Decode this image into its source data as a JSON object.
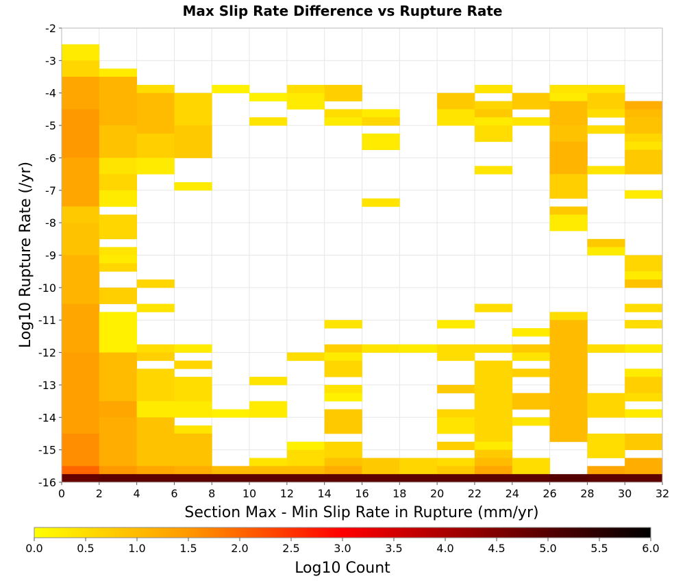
{
  "chart_data": {
    "type": "heatmap",
    "title": "Max Slip Rate Difference vs Rupture Rate",
    "xlabel": "Section Max - Min Slip Rate in Rupture (mm/yr)",
    "ylabel": "Log10 Rupture Rate (/yr)",
    "xlim": [
      0,
      32
    ],
    "ylim": [
      -16,
      -2
    ],
    "x_bin_width": 2,
    "y_bin_width": 0.25,
    "x_ticks": [
      "0",
      "2",
      "4",
      "6",
      "8",
      "10",
      "12",
      "14",
      "16",
      "18",
      "20",
      "22",
      "24",
      "26",
      "28",
      "30",
      "32"
    ],
    "y_ticks": [
      "-2",
      "-3",
      "-4",
      "-5",
      "-6",
      "-7",
      "-8",
      "-9",
      "-10",
      "-11",
      "-12",
      "-13",
      "-14",
      "-15",
      "-16"
    ],
    "grid": true,
    "colorbar": {
      "label": "Log10 Count",
      "range": [
        0,
        6
      ],
      "ticks": [
        "0.0",
        "0.5",
        "1.0",
        "1.5",
        "2.0",
        "2.5",
        "3.0",
        "3.5",
        "4.0",
        "4.5",
        "5.0",
        "5.5",
        "6.0"
      ],
      "colors": [
        "#ffff00",
        "#ff9900",
        "#ff0000",
        "#000000"
      ]
    },
    "value_unit": "log10 count",
    "columns": [
      {
        "x_range": [
          0,
          2
        ],
        "segments": [
          [
            -3.0,
            -2.5,
            0.3
          ],
          [
            -3.5,
            -3.0,
            0.6
          ],
          [
            -4.5,
            -3.5,
            1.3
          ],
          [
            -6.0,
            -4.5,
            1.5
          ],
          [
            -7.5,
            -6.0,
            1.3
          ],
          [
            -8.0,
            -7.5,
            0.8
          ],
          [
            -9.0,
            -8.0,
            0.9
          ],
          [
            -10.5,
            -9.0,
            1.1
          ],
          [
            -12.0,
            -10.5,
            1.3
          ],
          [
            -14.5,
            -12.0,
            1.4
          ],
          [
            -15.5,
            -14.5,
            1.6
          ],
          [
            -15.75,
            -15.5,
            2.0
          ],
          [
            -16.0,
            -15.75,
            4.8
          ]
        ]
      },
      {
        "x_range": [
          2,
          4
        ],
        "segments": [
          [
            -3.5,
            -3.25,
            0.3
          ],
          [
            -5.0,
            -3.5,
            1.1
          ],
          [
            -6.0,
            -5.0,
            0.9
          ],
          [
            -6.5,
            -6.0,
            0.4
          ],
          [
            -7.0,
            -6.5,
            0.6
          ],
          [
            -7.5,
            -7.0,
            0.3
          ],
          [
            -8.0,
            -7.75,
            0.6
          ],
          [
            -8.5,
            -8.0,
            0.6
          ],
          [
            -9.0,
            -8.75,
            0.4
          ],
          [
            -9.25,
            -9.0,
            0.3
          ],
          [
            -9.5,
            -9.25,
            0.6
          ],
          [
            -10.5,
            -10.0,
            0.7
          ],
          [
            -12.0,
            -10.75,
            0.2
          ],
          [
            -13.5,
            -12.0,
            1.0
          ],
          [
            -14.0,
            -13.5,
            1.3
          ],
          [
            -15.5,
            -14.0,
            1.2
          ],
          [
            -15.75,
            -15.5,
            1.5
          ],
          [
            -16.0,
            -15.75,
            4.9
          ]
        ]
      },
      {
        "x_range": [
          4,
          6
        ],
        "segments": [
          [
            -4.0,
            -3.75,
            0.5
          ],
          [
            -5.25,
            -4.0,
            1.0
          ],
          [
            -6.0,
            -5.25,
            0.7
          ],
          [
            -6.5,
            -6.0,
            0.3
          ],
          [
            -10.0,
            -9.75,
            0.6
          ],
          [
            -10.75,
            -10.5,
            0.4
          ],
          [
            -12.0,
            -11.75,
            0.5
          ],
          [
            -12.25,
            -12.0,
            0.7
          ],
          [
            -13.5,
            -12.5,
            0.6
          ],
          [
            -14.0,
            -13.5,
            0.3
          ],
          [
            -15.5,
            -14.0,
            0.9
          ],
          [
            -15.75,
            -15.5,
            1.3
          ],
          [
            -16.0,
            -15.75,
            4.9
          ]
        ]
      },
      {
        "x_range": [
          6,
          8
        ],
        "segments": [
          [
            -5.0,
            -4.0,
            0.6
          ],
          [
            -6.0,
            -5.0,
            0.8
          ],
          [
            -7.0,
            -6.75,
            0.3
          ],
          [
            -12.0,
            -11.75,
            0.3
          ],
          [
            -12.5,
            -12.25,
            0.6
          ],
          [
            -13.5,
            -12.75,
            0.5
          ],
          [
            -14.0,
            -13.5,
            0.3
          ],
          [
            -14.5,
            -14.25,
            0.4
          ],
          [
            -15.5,
            -14.5,
            0.9
          ],
          [
            -15.75,
            -15.5,
            1.2
          ],
          [
            -16.0,
            -15.75,
            4.9
          ]
        ]
      },
      {
        "x_range": [
          8,
          10
        ],
        "segments": [
          [
            -4.0,
            -3.75,
            0.2
          ],
          [
            -14.0,
            -13.75,
            0.2
          ],
          [
            -15.75,
            -15.5,
            1.0
          ],
          [
            -16.0,
            -15.75,
            4.9
          ]
        ]
      },
      {
        "x_range": [
          10,
          12
        ],
        "segments": [
          [
            -4.25,
            -4.0,
            0.2
          ],
          [
            -5.0,
            -4.75,
            0.4
          ],
          [
            -13.0,
            -12.75,
            0.4
          ],
          [
            -14.0,
            -13.5,
            0.3
          ],
          [
            -15.5,
            -15.25,
            0.4
          ],
          [
            -15.75,
            -15.5,
            1.0
          ],
          [
            -16.0,
            -15.75,
            4.9
          ]
        ]
      },
      {
        "x_range": [
          12,
          14
        ],
        "segments": [
          [
            -4.0,
            -3.75,
            0.5
          ],
          [
            -4.5,
            -4.0,
            0.3
          ],
          [
            -12.25,
            -12.0,
            0.5
          ],
          [
            -15.0,
            -14.75,
            0.2
          ],
          [
            -15.5,
            -15.0,
            0.5
          ],
          [
            -15.75,
            -15.5,
            1.0
          ],
          [
            -16.0,
            -15.75,
            4.9
          ]
        ]
      },
      {
        "x_range": [
          14,
          16
        ],
        "segments": [
          [
            -4.25,
            -3.75,
            0.7
          ],
          [
            -4.75,
            -4.5,
            0.5
          ],
          [
            -5.0,
            -4.75,
            0.3
          ],
          [
            -11.25,
            -11.0,
            0.4
          ],
          [
            -12.0,
            -11.75,
            0.7
          ],
          [
            -12.25,
            -12.0,
            0.3
          ],
          [
            -12.75,
            -12.25,
            0.6
          ],
          [
            -13.25,
            -13.0,
            0.4
          ],
          [
            -13.5,
            -13.25,
            0.2
          ],
          [
            -14.5,
            -13.75,
            0.8
          ],
          [
            -15.25,
            -14.75,
            0.6
          ],
          [
            -15.5,
            -15.25,
            0.9
          ],
          [
            -15.75,
            -15.5,
            1.2
          ],
          [
            -16.0,
            -15.75,
            4.9
          ]
        ]
      },
      {
        "x_range": [
          16,
          18
        ],
        "segments": [
          [
            -4.75,
            -4.5,
            0.3
          ],
          [
            -5.0,
            -4.75,
            0.6
          ],
          [
            -5.75,
            -5.25,
            0.3
          ],
          [
            -7.5,
            -7.25,
            0.4
          ],
          [
            -12.0,
            -11.75,
            0.4
          ],
          [
            -15.75,
            -15.25,
            0.8
          ],
          [
            -16.0,
            -15.75,
            4.9
          ]
        ]
      },
      {
        "x_range": [
          18,
          20
        ],
        "segments": [
          [
            -12.0,
            -11.75,
            0.3
          ],
          [
            -15.75,
            -15.25,
            0.6
          ],
          [
            -16.0,
            -15.75,
            4.9
          ]
        ]
      },
      {
        "x_range": [
          20,
          22
        ],
        "segments": [
          [
            -4.5,
            -4.0,
            0.8
          ],
          [
            -5.0,
            -4.5,
            0.4
          ],
          [
            -11.25,
            -11.0,
            0.3
          ],
          [
            -12.25,
            -11.75,
            0.5
          ],
          [
            -13.25,
            -13.0,
            0.8
          ],
          [
            -14.0,
            -13.75,
            0.6
          ],
          [
            -14.5,
            -14.0,
            0.4
          ],
          [
            -15.0,
            -14.75,
            0.7
          ],
          [
            -15.5,
            -15.25,
            0.5
          ],
          [
            -15.75,
            -15.5,
            0.8
          ],
          [
            -16.0,
            -15.75,
            4.9
          ]
        ]
      },
      {
        "x_range": [
          22,
          24
        ],
        "segments": [
          [
            -4.0,
            -3.75,
            0.4
          ],
          [
            -4.5,
            -4.25,
            0.6
          ],
          [
            -4.75,
            -4.5,
            0.8
          ],
          [
            -5.0,
            -4.75,
            0.3
          ],
          [
            -5.5,
            -5.0,
            0.5
          ],
          [
            -6.5,
            -6.25,
            0.4
          ],
          [
            -10.75,
            -10.5,
            0.5
          ],
          [
            -12.0,
            -11.75,
            0.5
          ],
          [
            -14.75,
            -12.25,
            0.6
          ],
          [
            -15.0,
            -14.75,
            0.3
          ],
          [
            -15.25,
            -15.0,
            0.8
          ],
          [
            -15.5,
            -15.25,
            1.0
          ],
          [
            -15.75,
            -15.5,
            1.3
          ],
          [
            -16.0,
            -15.75,
            4.9
          ]
        ]
      },
      {
        "x_range": [
          24,
          26
        ],
        "segments": [
          [
            -4.5,
            -4.0,
            0.8
          ],
          [
            -5.0,
            -4.75,
            0.4
          ],
          [
            -11.5,
            -11.25,
            0.3
          ],
          [
            -12.0,
            -11.75,
            0.8
          ],
          [
            -12.25,
            -12.0,
            0.4
          ],
          [
            -12.75,
            -12.5,
            0.7
          ],
          [
            -13.75,
            -13.25,
            0.9
          ],
          [
            -14.25,
            -14.0,
            0.4
          ],
          [
            -15.75,
            -15.25,
            0.5
          ],
          [
            -16.0,
            -15.75,
            4.9
          ]
        ]
      },
      {
        "x_range": [
          26,
          28
        ],
        "segments": [
          [
            -4.0,
            -3.75,
            0.4
          ],
          [
            -4.25,
            -4.0,
            0.3
          ],
          [
            -5.0,
            -4.25,
            1.0
          ],
          [
            -5.5,
            -5.0,
            0.9
          ],
          [
            -6.5,
            -5.5,
            1.1
          ],
          [
            -7.25,
            -6.5,
            0.7
          ],
          [
            -7.75,
            -7.5,
            0.8
          ],
          [
            -8.25,
            -7.75,
            0.3
          ],
          [
            -11.0,
            -10.75,
            0.5
          ],
          [
            -14.75,
            -11.0,
            1.0
          ],
          [
            -16.0,
            -15.75,
            5.0
          ]
        ]
      },
      {
        "x_range": [
          28,
          30
        ],
        "segments": [
          [
            -4.0,
            -3.75,
            0.4
          ],
          [
            -4.5,
            -4.0,
            0.7
          ],
          [
            -4.75,
            -4.5,
            0.5
          ],
          [
            -5.25,
            -5.0,
            0.5
          ],
          [
            -6.5,
            -6.25,
            0.4
          ],
          [
            -8.75,
            -8.5,
            0.8
          ],
          [
            -9.0,
            -8.75,
            0.3
          ],
          [
            -12.0,
            -11.75,
            0.5
          ],
          [
            -14.0,
            -13.25,
            0.6
          ],
          [
            -15.25,
            -14.5,
            0.5
          ],
          [
            -15.75,
            -15.5,
            1.3
          ],
          [
            -16.0,
            -15.75,
            4.9
          ]
        ]
      },
      {
        "x_range": [
          30,
          32
        ],
        "segments": [
          [
            -4.5,
            -4.25,
            1.2
          ],
          [
            -4.75,
            -4.5,
            1.0
          ],
          [
            -5.25,
            -4.75,
            0.9
          ],
          [
            -5.5,
            -5.25,
            0.6
          ],
          [
            -5.75,
            -5.5,
            0.4
          ],
          [
            -6.5,
            -5.75,
            0.8
          ],
          [
            -7.25,
            -7.0,
            0.3
          ],
          [
            -9.5,
            -9.0,
            0.6
          ],
          [
            -9.75,
            -9.5,
            0.3
          ],
          [
            -10.0,
            -9.75,
            0.9
          ],
          [
            -10.75,
            -10.5,
            0.5
          ],
          [
            -11.25,
            -11.0,
            0.5
          ],
          [
            -12.0,
            -11.75,
            0.3
          ],
          [
            -12.75,
            -12.5,
            0.3
          ],
          [
            -13.25,
            -12.75,
            0.7
          ],
          [
            -13.5,
            -13.25,
            0.5
          ],
          [
            -14.0,
            -13.75,
            0.3
          ],
          [
            -15.0,
            -14.5,
            0.8
          ],
          [
            -15.75,
            -15.25,
            1.2
          ],
          [
            -16.0,
            -15.75,
            4.9
          ]
        ]
      }
    ]
  }
}
